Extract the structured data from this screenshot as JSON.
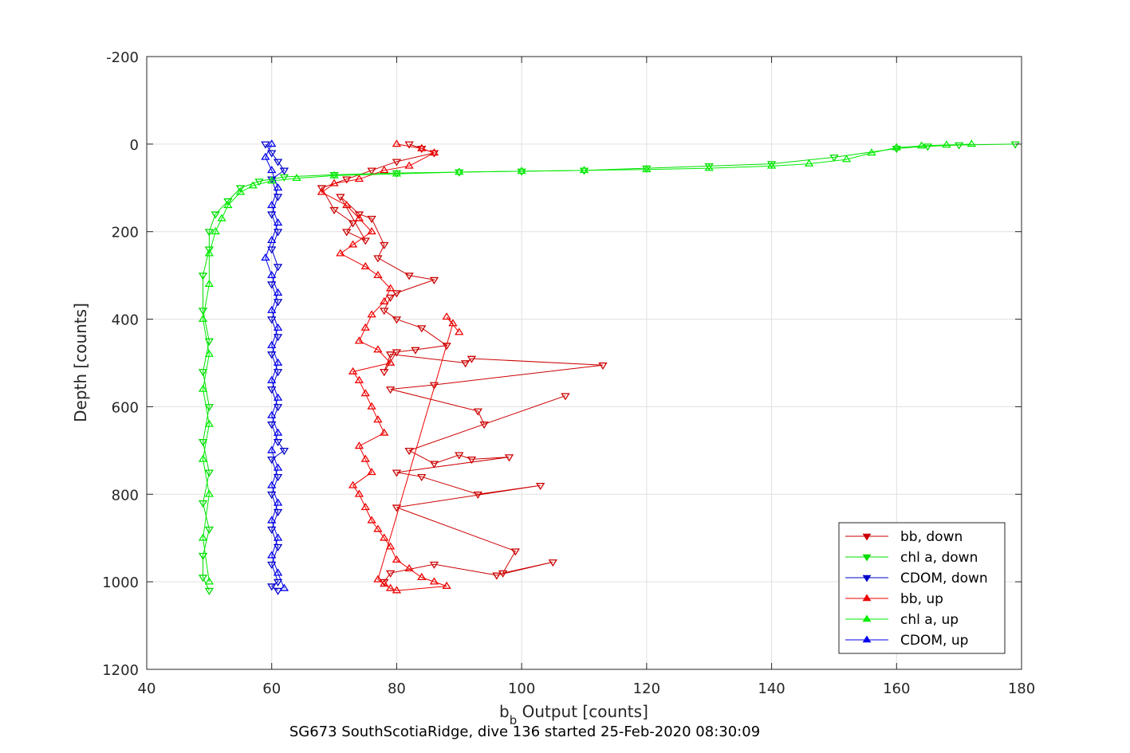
{
  "chart_data": {
    "type": "scatter",
    "xlabel_main": "b",
    "xlabel_sub": "b",
    "xlabel_rest": " Output [counts]",
    "ylabel": "Depth [counts]",
    "footer": "SG673 SouthScotiaRidge, dive 136 started 25-Feb-2020 08:30:09",
    "xlim": [
      40,
      180
    ],
    "ylim": [
      -200,
      1200
    ],
    "y_reversed": true,
    "x_ticks": [
      "40",
      "60",
      "80",
      "100",
      "120",
      "140",
      "160",
      "180"
    ],
    "y_ticks": [
      "-200",
      "0",
      "200",
      "400",
      "600",
      "800",
      "1000",
      "1200"
    ],
    "grid": true,
    "legend_position": "bottom-right",
    "series": [
      {
        "name": "bb, down",
        "color": "#cc0000",
        "marker": "triangle-down",
        "x": [
          82,
          84,
          86,
          80,
          76,
          72,
          68,
          70,
          73,
          72,
          75,
          71,
          74,
          76,
          78,
          77,
          82,
          86,
          80,
          79,
          78,
          80,
          84,
          88,
          83,
          80,
          78,
          79,
          91,
          92,
          113,
          86,
          79,
          93,
          94,
          107,
          82,
          86,
          90,
          92,
          98,
          80,
          84,
          93,
          103,
          80,
          99,
          97,
          105,
          96,
          86,
          79,
          78
        ],
        "y": [
          0,
          10,
          20,
          40,
          60,
          80,
          100,
          150,
          180,
          200,
          220,
          120,
          160,
          170,
          230,
          260,
          300,
          310,
          340,
          350,
          380,
          400,
          420,
          460,
          470,
          475,
          520,
          480,
          500,
          490,
          505,
          550,
          560,
          610,
          640,
          575,
          700,
          730,
          710,
          720,
          715,
          750,
          760,
          800,
          780,
          830,
          930,
          980,
          955,
          985,
          960,
          980,
          1000
        ]
      },
      {
        "name": "chl a, down",
        "color": "#00dd00",
        "marker": "triangle-down",
        "x": [
          179,
          170,
          165,
          160,
          150,
          140,
          130,
          120,
          110,
          100,
          90,
          80,
          70,
          62,
          58,
          55,
          53,
          51,
          50,
          50,
          49,
          49,
          50,
          49,
          50,
          49,
          50,
          49,
          50,
          49,
          49,
          50
        ],
        "y": [
          0,
          2,
          5,
          10,
          30,
          45,
          50,
          55,
          60,
          62,
          64,
          66,
          70,
          75,
          85,
          100,
          130,
          160,
          200,
          240,
          300,
          380,
          450,
          520,
          600,
          680,
          750,
          820,
          880,
          940,
          990,
          1020
        ]
      },
      {
        "name": "CDOM, down",
        "color": "#0000cc",
        "marker": "triangle-down",
        "x": [
          59,
          60,
          61,
          62,
          60,
          61,
          60,
          61,
          60,
          61,
          60,
          61,
          60,
          61,
          60,
          61,
          60,
          61,
          60,
          61,
          62,
          60,
          61,
          60,
          61,
          60,
          61,
          60,
          61,
          60,
          61
        ],
        "y": [
          0,
          20,
          40,
          60,
          80,
          120,
          160,
          200,
          240,
          280,
          320,
          360,
          400,
          440,
          480,
          520,
          560,
          600,
          640,
          680,
          700,
          720,
          760,
          800,
          840,
          880,
          920,
          960,
          1000,
          1010,
          1020
        ]
      },
      {
        "name": "bb, up",
        "color": "#ee0000",
        "marker": "triangle-up",
        "x": [
          80,
          84,
          86,
          82,
          78,
          74,
          70,
          68,
          72,
          74,
          76,
          73,
          71,
          75,
          77,
          79,
          78,
          76,
          75,
          74,
          77,
          79,
          73,
          74,
          75,
          76,
          77,
          78,
          74,
          75,
          76,
          73,
          74,
          75,
          76,
          77,
          78,
          79,
          80,
          82,
          84,
          86,
          88,
          80,
          79,
          78,
          77,
          89,
          88,
          90
        ],
        "y": [
          0,
          10,
          20,
          50,
          60,
          80,
          90,
          110,
          140,
          170,
          200,
          230,
          250,
          280,
          300,
          330,
          360,
          390,
          420,
          450,
          470,
          500,
          520,
          540,
          570,
          600,
          630,
          660,
          690,
          720,
          750,
          780,
          800,
          830,
          860,
          880,
          900,
          920,
          950,
          970,
          990,
          1000,
          1010,
          1020,
          1015,
          1005,
          995,
          410,
          395,
          430
        ]
      },
      {
        "name": "chl a, up",
        "color": "#00ee00",
        "marker": "triangle-up",
        "x": [
          172,
          168,
          164,
          160,
          156,
          152,
          146,
          140,
          130,
          120,
          110,
          100,
          90,
          80,
          70,
          64,
          60,
          57,
          55,
          53,
          52,
          51,
          50,
          50,
          49,
          50,
          49,
          50,
          49,
          50,
          49,
          50
        ],
        "y": [
          0,
          2,
          4,
          8,
          20,
          35,
          45,
          50,
          55,
          58,
          60,
          62,
          64,
          68,
          72,
          78,
          84,
          95,
          110,
          140,
          170,
          200,
          250,
          320,
          400,
          480,
          560,
          640,
          720,
          800,
          900,
          1000
        ]
      },
      {
        "name": "CDOM, up",
        "color": "#0000ee",
        "marker": "triangle-up",
        "x": [
          60,
          59,
          60,
          61,
          60,
          61,
          60,
          59,
          60,
          61,
          60,
          61,
          60,
          61,
          60,
          61,
          60,
          61,
          60,
          61,
          60,
          61,
          60,
          61,
          60,
          61,
          62
        ],
        "y": [
          0,
          30,
          60,
          100,
          140,
          180,
          220,
          260,
          300,
          340,
          380,
          420,
          460,
          500,
          540,
          580,
          620,
          660,
          700,
          740,
          780,
          820,
          860,
          900,
          940,
          980,
          1015
        ]
      }
    ]
  }
}
